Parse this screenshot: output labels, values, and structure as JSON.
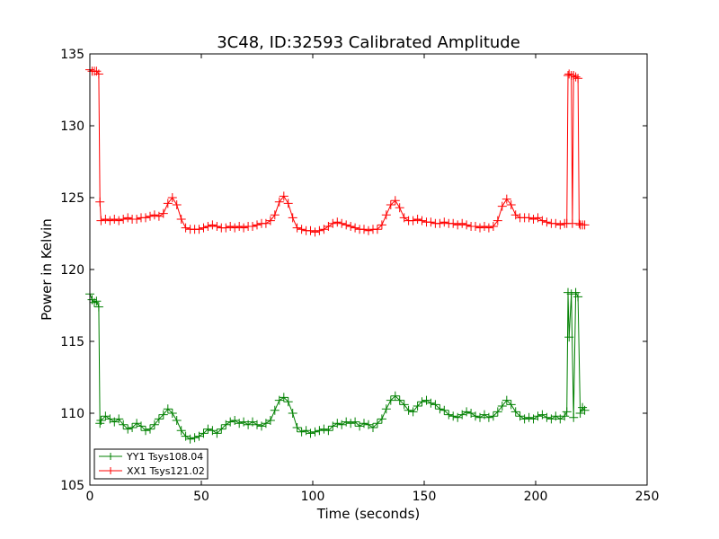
{
  "chart_data": {
    "type": "line",
    "title": "3C48, ID:32593 Calibrated Amplitude",
    "xlabel": "Time (seconds)",
    "ylabel": "Power in Kelvin",
    "xlim": [
      0,
      250
    ],
    "ylim": [
      105,
      135
    ],
    "xticks": [
      0,
      50,
      100,
      150,
      200,
      250
    ],
    "yticks": [
      105,
      110,
      115,
      120,
      125,
      130,
      135
    ],
    "grid": false,
    "legend_position": "lower-left",
    "marker": "+",
    "series": [
      {
        "name": "YY1 Tsys108.04",
        "color": "#008000",
        "points": [
          [
            0,
            118.3
          ],
          [
            1,
            117.9
          ],
          [
            2,
            117.7
          ],
          [
            3,
            117.8
          ],
          [
            4,
            117.4
          ],
          [
            4.5,
            109.3
          ],
          [
            5,
            109.5
          ],
          [
            7,
            109.8
          ],
          [
            9,
            109.6
          ],
          [
            11,
            109.4
          ],
          [
            13,
            109.6
          ],
          [
            15,
            109.2
          ],
          [
            17,
            108.9
          ],
          [
            19,
            109.0
          ],
          [
            21,
            109.3
          ],
          [
            23,
            109.1
          ],
          [
            25,
            108.8
          ],
          [
            27,
            108.9
          ],
          [
            29,
            109.2
          ],
          [
            31,
            109.6
          ],
          [
            33,
            109.9
          ],
          [
            35,
            110.3
          ],
          [
            37,
            110.0
          ],
          [
            39,
            109.5
          ],
          [
            41,
            108.8
          ],
          [
            43,
            108.4
          ],
          [
            45,
            108.2
          ],
          [
            47,
            108.3
          ],
          [
            49,
            108.4
          ],
          [
            51,
            108.6
          ],
          [
            53,
            108.9
          ],
          [
            55,
            108.8
          ],
          [
            57,
            108.6
          ],
          [
            59,
            108.9
          ],
          [
            61,
            109.2
          ],
          [
            63,
            109.4
          ],
          [
            65,
            109.5
          ],
          [
            67,
            109.3
          ],
          [
            69,
            109.4
          ],
          [
            71,
            109.2
          ],
          [
            73,
            109.4
          ],
          [
            75,
            109.2
          ],
          [
            77,
            109.1
          ],
          [
            79,
            109.3
          ],
          [
            81,
            109.5
          ],
          [
            83,
            110.2
          ],
          [
            85,
            110.9
          ],
          [
            87,
            111.1
          ],
          [
            89,
            110.8
          ],
          [
            91,
            110.0
          ],
          [
            93,
            109.0
          ],
          [
            95,
            108.7
          ],
          [
            97,
            108.8
          ],
          [
            99,
            108.6
          ],
          [
            101,
            108.7
          ],
          [
            103,
            108.8
          ],
          [
            105,
            108.9
          ],
          [
            107,
            108.8
          ],
          [
            109,
            109.1
          ],
          [
            111,
            109.3
          ],
          [
            113,
            109.2
          ],
          [
            115,
            109.4
          ],
          [
            117,
            109.3
          ],
          [
            119,
            109.4
          ],
          [
            121,
            109.1
          ],
          [
            123,
            109.3
          ],
          [
            125,
            109.2
          ],
          [
            127,
            109.0
          ],
          [
            129,
            109.3
          ],
          [
            131,
            109.6
          ],
          [
            133,
            110.3
          ],
          [
            135,
            110.9
          ],
          [
            137,
            111.2
          ],
          [
            139,
            110.9
          ],
          [
            141,
            110.6
          ],
          [
            143,
            110.2
          ],
          [
            145,
            110.1
          ],
          [
            147,
            110.5
          ],
          [
            149,
            110.8
          ],
          [
            151,
            110.9
          ],
          [
            153,
            110.7
          ],
          [
            155,
            110.6
          ],
          [
            157,
            110.3
          ],
          [
            159,
            110.2
          ],
          [
            161,
            109.9
          ],
          [
            163,
            109.8
          ],
          [
            165,
            109.7
          ],
          [
            167,
            109.9
          ],
          [
            169,
            110.1
          ],
          [
            171,
            110.0
          ],
          [
            173,
            109.8
          ],
          [
            175,
            109.7
          ],
          [
            177,
            109.9
          ],
          [
            179,
            109.7
          ],
          [
            181,
            109.8
          ],
          [
            183,
            110.1
          ],
          [
            185,
            110.5
          ],
          [
            187,
            110.9
          ],
          [
            189,
            110.6
          ],
          [
            191,
            110.1
          ],
          [
            193,
            109.8
          ],
          [
            195,
            109.6
          ],
          [
            197,
            109.7
          ],
          [
            199,
            109.6
          ],
          [
            201,
            109.8
          ],
          [
            203,
            109.9
          ],
          [
            205,
            109.7
          ],
          [
            207,
            109.6
          ],
          [
            209,
            109.8
          ],
          [
            211,
            109.6
          ],
          [
            213,
            109.8
          ],
          [
            214,
            110.1
          ],
          [
            214.5,
            118.4
          ],
          [
            215,
            115.3
          ],
          [
            216,
            118.3
          ],
          [
            217,
            109.7
          ],
          [
            218,
            118.4
          ],
          [
            219,
            118.1
          ],
          [
            220,
            110.0
          ],
          [
            221,
            110.4
          ],
          [
            222,
            110.2
          ]
        ]
      },
      {
        "name": "XX1 Tsys121.02",
        "color": "#ff0000",
        "points": [
          [
            0,
            133.9
          ],
          [
            1,
            133.8
          ],
          [
            2,
            133.8
          ],
          [
            3,
            133.8
          ],
          [
            4,
            133.6
          ],
          [
            4.5,
            124.7
          ],
          [
            5,
            123.4
          ],
          [
            7,
            123.5
          ],
          [
            9,
            123.4
          ],
          [
            11,
            123.5
          ],
          [
            13,
            123.4
          ],
          [
            15,
            123.5
          ],
          [
            17,
            123.6
          ],
          [
            19,
            123.5
          ],
          [
            21,
            123.5
          ],
          [
            23,
            123.6
          ],
          [
            25,
            123.6
          ],
          [
            27,
            123.7
          ],
          [
            29,
            123.8
          ],
          [
            31,
            123.7
          ],
          [
            33,
            123.9
          ],
          [
            35,
            124.6
          ],
          [
            37,
            125.0
          ],
          [
            39,
            124.5
          ],
          [
            41,
            123.5
          ],
          [
            43,
            122.9
          ],
          [
            45,
            122.8
          ],
          [
            47,
            122.8
          ],
          [
            49,
            122.8
          ],
          [
            51,
            122.9
          ],
          [
            53,
            123.0
          ],
          [
            55,
            123.1
          ],
          [
            57,
            123.0
          ],
          [
            59,
            122.9
          ],
          [
            61,
            122.9
          ],
          [
            63,
            123.0
          ],
          [
            65,
            122.9
          ],
          [
            67,
            123.0
          ],
          [
            69,
            122.9
          ],
          [
            71,
            123.0
          ],
          [
            73,
            123.0
          ],
          [
            75,
            123.1
          ],
          [
            77,
            123.2
          ],
          [
            79,
            123.2
          ],
          [
            81,
            123.4
          ],
          [
            83,
            123.8
          ],
          [
            85,
            124.7
          ],
          [
            87,
            125.1
          ],
          [
            89,
            124.6
          ],
          [
            91,
            123.6
          ],
          [
            93,
            122.9
          ],
          [
            95,
            122.8
          ],
          [
            97,
            122.7
          ],
          [
            99,
            122.7
          ],
          [
            101,
            122.6
          ],
          [
            103,
            122.7
          ],
          [
            105,
            122.8
          ],
          [
            107,
            123.0
          ],
          [
            109,
            123.2
          ],
          [
            111,
            123.3
          ],
          [
            113,
            123.2
          ],
          [
            115,
            123.1
          ],
          [
            117,
            123.0
          ],
          [
            119,
            122.9
          ],
          [
            121,
            122.8
          ],
          [
            123,
            122.8
          ],
          [
            125,
            122.7
          ],
          [
            127,
            122.8
          ],
          [
            129,
            122.8
          ],
          [
            131,
            123.1
          ],
          [
            133,
            123.8
          ],
          [
            135,
            124.5
          ],
          [
            137,
            124.8
          ],
          [
            139,
            124.3
          ],
          [
            141,
            123.6
          ],
          [
            143,
            123.4
          ],
          [
            145,
            123.4
          ],
          [
            147,
            123.5
          ],
          [
            149,
            123.4
          ],
          [
            151,
            123.3
          ],
          [
            153,
            123.3
          ],
          [
            155,
            123.2
          ],
          [
            157,
            123.2
          ],
          [
            159,
            123.3
          ],
          [
            161,
            123.2
          ],
          [
            163,
            123.2
          ],
          [
            165,
            123.1
          ],
          [
            167,
            123.2
          ],
          [
            169,
            123.1
          ],
          [
            171,
            123.0
          ],
          [
            173,
            123.0
          ],
          [
            175,
            122.9
          ],
          [
            177,
            123.0
          ],
          [
            179,
            122.9
          ],
          [
            181,
            123.0
          ],
          [
            183,
            123.4
          ],
          [
            185,
            124.4
          ],
          [
            187,
            124.9
          ],
          [
            189,
            124.5
          ],
          [
            191,
            123.8
          ],
          [
            193,
            123.6
          ],
          [
            195,
            123.6
          ],
          [
            197,
            123.6
          ],
          [
            199,
            123.5
          ],
          [
            201,
            123.6
          ],
          [
            203,
            123.4
          ],
          [
            205,
            123.3
          ],
          [
            207,
            123.2
          ],
          [
            209,
            123.2
          ],
          [
            211,
            123.1
          ],
          [
            213,
            123.2
          ],
          [
            214,
            123.2
          ],
          [
            214.5,
            133.5
          ],
          [
            215,
            133.6
          ],
          [
            216,
            133.5
          ],
          [
            216.5,
            123.2
          ],
          [
            217,
            133.5
          ],
          [
            218,
            133.4
          ],
          [
            219,
            133.3
          ],
          [
            219.5,
            123.2
          ],
          [
            220,
            123.1
          ],
          [
            221,
            123.1
          ],
          [
            222,
            123.1
          ]
        ]
      }
    ]
  }
}
